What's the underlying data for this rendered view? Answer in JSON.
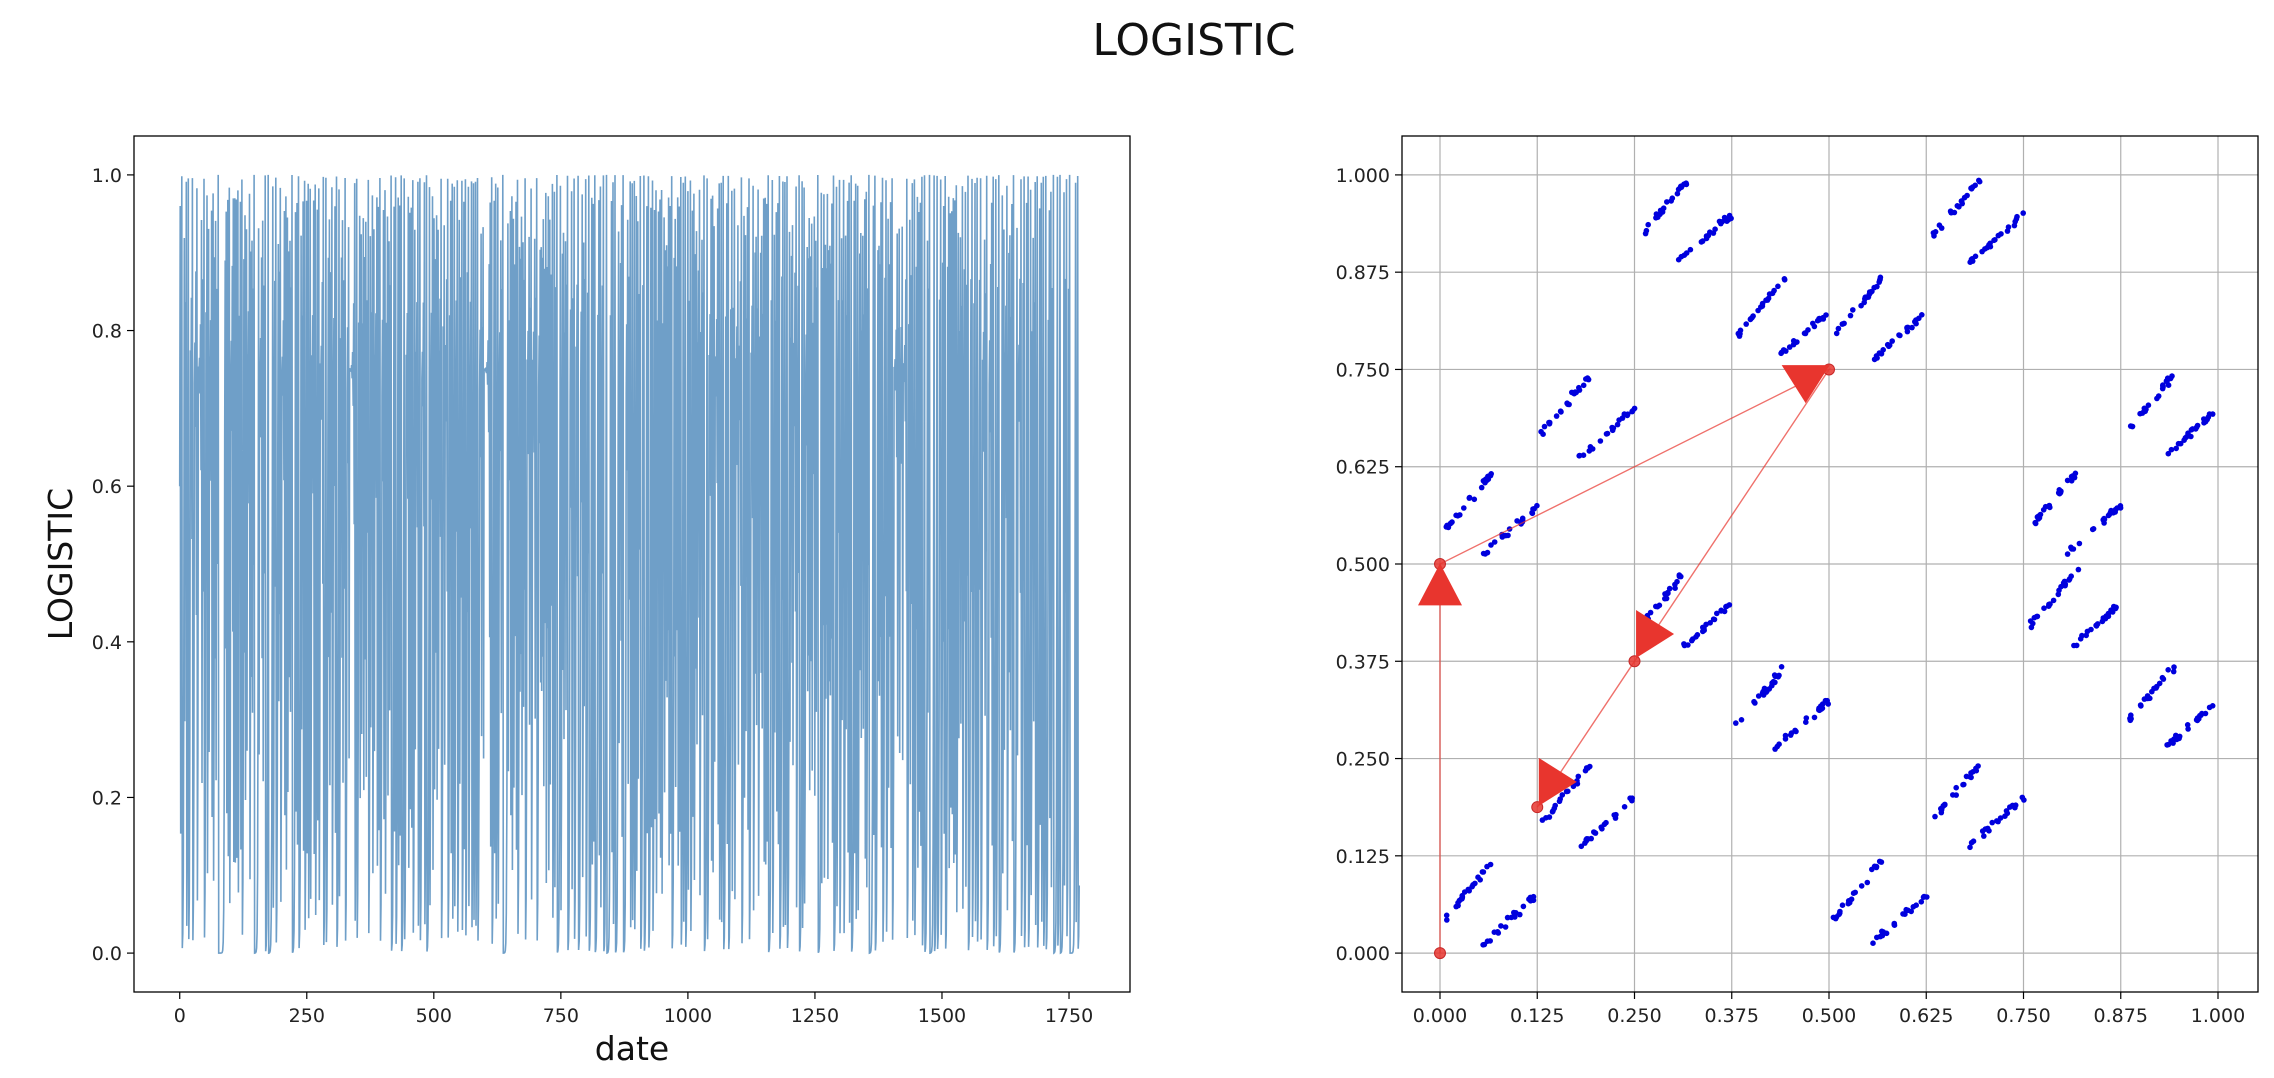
{
  "figure": {
    "suptitle": "LOGISTIC"
  },
  "chart_data": [
    {
      "type": "line",
      "xlabel": "date",
      "ylabel": "LOGISTIC",
      "xlim": [
        -90,
        1870
      ],
      "ylim": [
        -0.05,
        1.05
      ],
      "x_ticks": [
        0,
        250,
        500,
        750,
        1000,
        1250,
        1500,
        1750
      ],
      "x_tick_labels": [
        "0",
        "250",
        "500",
        "750",
        "1000",
        "1250",
        "1500",
        "1750"
      ],
      "y_ticks": [
        0.0,
        0.2,
        0.4,
        0.6,
        0.8,
        1.0
      ],
      "y_tick_labels": [
        "0.0",
        "0.2",
        "0.4",
        "0.6",
        "0.8",
        "1.0"
      ],
      "grid": false,
      "series": [
        {
          "n_points": 1780,
          "x_range": [
            0,
            1770
          ],
          "logistic_r": 4.0,
          "x0": 0.6,
          "y_range": [
            0.0,
            1.0
          ],
          "color": "#6f9fc8"
        }
      ]
    },
    {
      "type": "scatter",
      "xlim": [
        -0.1,
        2.1
      ],
      "ylim": [
        -0.05,
        1.05
      ],
      "x_ticks": [
        0.0,
        0.125,
        0.25,
        0.375,
        0.5,
        0.625,
        0.75,
        0.875,
        1.0
      ],
      "x_tick_labels": [
        "0.000",
        "0.125",
        "0.250",
        "0.375",
        "0.500",
        "0.625",
        "0.750",
        "0.875",
        "1.000"
      ],
      "y_ticks": [
        0.0,
        0.125,
        0.25,
        0.375,
        0.5,
        0.625,
        0.75,
        0.875,
        1.0
      ],
      "y_tick_labels": [
        "0.000",
        "0.125",
        "0.250",
        "0.375",
        "0.500",
        "0.625",
        "0.750",
        "0.875",
        "1.000"
      ],
      "grid": true,
      "scatter_color": "#0000dd",
      "clusters": [
        {
          "x": [
            0.0,
            0.125
          ],
          "y": [
            0.0,
            0.125
          ]
        },
        {
          "x": [
            0.125,
            0.25
          ],
          "y": [
            0.125,
            0.25
          ]
        },
        {
          "x": [
            0.25,
            0.375
          ],
          "y": [
            0.875,
            1.0
          ]
        },
        {
          "x": [
            0.375,
            0.5
          ],
          "y": [
            0.75,
            0.875
          ]
        },
        {
          "x": [
            0.5,
            0.625
          ],
          "y": [
            0.75,
            0.875
          ]
        },
        {
          "x": [
            0.625,
            0.75
          ],
          "y": [
            0.875,
            1.0
          ]
        },
        {
          "x": [
            0.125,
            0.25
          ],
          "y": [
            0.625,
            0.75
          ]
        },
        {
          "x": [
            0.0,
            0.125
          ],
          "y": [
            0.5,
            0.625
          ]
        },
        {
          "x": [
            0.25,
            0.375
          ],
          "y": [
            0.375,
            0.5
          ]
        },
        {
          "x": [
            0.375,
            0.5
          ],
          "y": [
            0.25,
            0.375
          ]
        },
        {
          "x": [
            0.5,
            0.625
          ],
          "y": [
            0.0,
            0.125
          ]
        },
        {
          "x": [
            0.625,
            0.75
          ],
          "y": [
            0.125,
            0.25
          ]
        },
        {
          "x": [
            0.75,
            0.875
          ],
          "y": [
            0.5,
            0.625
          ]
        },
        {
          "x": [
            0.875,
            1.0
          ],
          "y": [
            0.625,
            0.75
          ]
        },
        {
          "x": [
            0.75,
            0.875
          ],
          "y": [
            0.375,
            0.5
          ]
        },
        {
          "x": [
            0.875,
            1.0
          ],
          "y": [
            0.25,
            0.375
          ]
        }
      ],
      "path": {
        "color": "#e8352e",
        "points": [
          {
            "x": 0.0,
            "y": 0.0
          },
          {
            "x": 0.0,
            "y": 0.5
          },
          {
            "x": 0.5,
            "y": 0.75
          },
          {
            "x": 0.25,
            "y": 0.375
          },
          {
            "x": 0.125,
            "y": 0.1875
          }
        ],
        "arrows": [
          {
            "x": 0.0,
            "y": 0.47,
            "direction": "up"
          },
          {
            "x": 0.47,
            "y": 0.735,
            "direction": "down"
          },
          {
            "x": 0.27,
            "y": 0.41,
            "direction": "right"
          },
          {
            "x": 0.145,
            "y": 0.22,
            "direction": "right"
          }
        ]
      }
    }
  ]
}
